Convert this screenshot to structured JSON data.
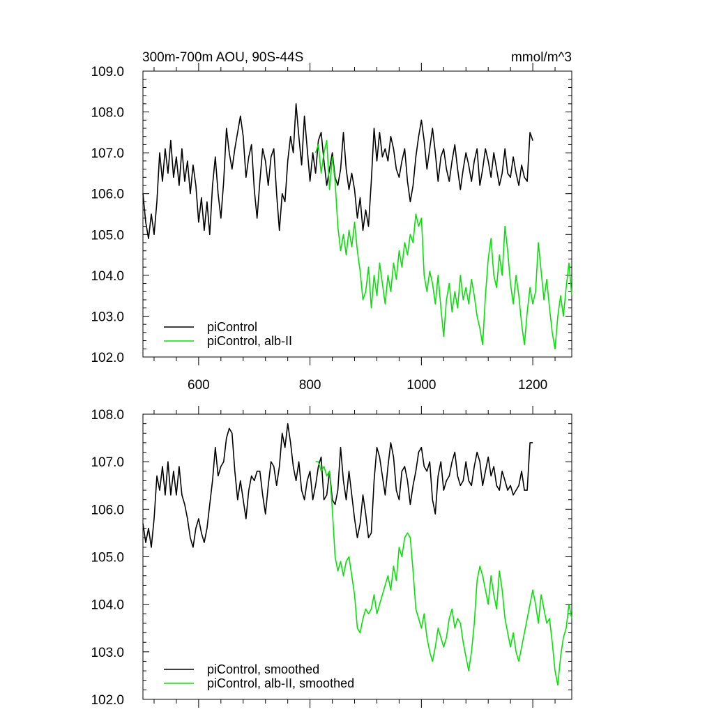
{
  "chart_data": [
    {
      "type": "line",
      "title": "300m-700m AOU, 90S-44S",
      "units": "mmol/m^3",
      "xlim": [
        500,
        1270
      ],
      "ylim": [
        102.0,
        109.0
      ],
      "x_ticks": [
        600,
        800,
        1000,
        1200
      ],
      "x_tick_labels": [
        "600",
        "800",
        "1000",
        "1200"
      ],
      "y_ticks": [
        102,
        103,
        104,
        105,
        106,
        107,
        108,
        109
      ],
      "y_tick_labels": [
        "102.0",
        "103.0",
        "104.0",
        "105.0",
        "106.0",
        "107.0",
        "108.0",
        "109.0"
      ],
      "legend_position": "bottom-left",
      "series": [
        {
          "name": "piControl",
          "color": "#000000",
          "x": [
            500,
            505,
            510,
            515,
            520,
            525,
            530,
            535,
            540,
            545,
            550,
            555,
            560,
            565,
            570,
            575,
            580,
            585,
            590,
            595,
            600,
            605,
            610,
            615,
            620,
            625,
            630,
            635,
            640,
            645,
            650,
            655,
            660,
            665,
            670,
            675,
            680,
            685,
            690,
            695,
            700,
            705,
            710,
            715,
            720,
            725,
            730,
            735,
            740,
            745,
            750,
            755,
            760,
            765,
            770,
            775,
            780,
            785,
            790,
            795,
            800,
            805,
            810,
            815,
            820,
            825,
            830,
            835,
            840,
            845,
            850,
            855,
            860,
            865,
            870,
            875,
            880,
            885,
            890,
            895,
            900,
            905,
            910,
            915,
            920,
            925,
            930,
            935,
            940,
            945,
            950,
            955,
            960,
            965,
            970,
            975,
            980,
            985,
            990,
            995,
            1000,
            1005,
            1010,
            1015,
            1020,
            1025,
            1030,
            1035,
            1040,
            1045,
            1050,
            1055,
            1060,
            1065,
            1070,
            1075,
            1080,
            1085,
            1090,
            1095,
            1100,
            1105,
            1110,
            1115,
            1120,
            1125,
            1130,
            1135,
            1140,
            1145,
            1150,
            1155,
            1160,
            1165,
            1170,
            1175,
            1180,
            1185,
            1190,
            1195,
            1200
          ],
          "values": [
            106.0,
            105.3,
            104.9,
            105.5,
            105.0,
            105.8,
            107.0,
            106.3,
            107.1,
            106.5,
            107.3,
            106.4,
            106.9,
            106.2,
            107.1,
            106.3,
            106.8,
            106.0,
            106.7,
            106.2,
            105.3,
            105.9,
            105.1,
            105.8,
            105.0,
            106.2,
            106.9,
            106.0,
            105.4,
            106.3,
            107.6,
            107.0,
            106.6,
            107.1,
            107.5,
            107.9,
            107.4,
            106.4,
            106.9,
            107.2,
            106.1,
            105.4,
            106.3,
            107.1,
            106.8,
            106.2,
            106.9,
            107.1,
            106.0,
            105.1,
            106.0,
            105.8,
            106.8,
            107.4,
            107.0,
            108.2,
            107.4,
            106.7,
            107.9,
            107.1,
            106.3,
            107.0,
            106.5,
            107.3,
            107.5,
            106.8,
            106.2,
            106.6,
            107.0,
            106.4,
            106.2,
            106.6,
            107.5,
            106.6,
            106.1,
            106.5,
            106.1,
            105.4,
            105.9,
            105.1,
            105.6,
            105.2,
            106.3,
            107.6,
            106.8,
            107.5,
            106.9,
            107.1,
            106.8,
            107.4,
            107.1,
            106.6,
            106.4,
            106.8,
            107.1,
            106.3,
            105.8,
            106.2,
            106.9,
            107.4,
            107.8,
            107.3,
            106.6,
            107.1,
            107.6,
            107.0,
            106.3,
            106.9,
            107.1,
            106.6,
            106.3,
            106.8,
            107.2,
            106.6,
            106.1,
            106.6,
            107.0,
            106.7,
            106.3,
            106.8,
            107.1,
            106.2,
            106.6,
            107.1,
            106.8,
            106.4,
            107.0,
            106.6,
            106.2,
            106.5,
            107.1,
            106.5,
            106.4,
            106.9,
            106.5,
            106.2,
            106.7,
            106.4,
            106.3,
            107.5,
            107.3
          ]
        },
        {
          "name": "piControl, alb-II",
          "color": "#00e600",
          "x": [
            810,
            815,
            820,
            825,
            830,
            835,
            840,
            845,
            850,
            855,
            860,
            865,
            870,
            875,
            880,
            885,
            890,
            895,
            900,
            905,
            910,
            915,
            920,
            925,
            930,
            935,
            940,
            945,
            950,
            955,
            960,
            965,
            970,
            975,
            980,
            985,
            990,
            995,
            1000,
            1005,
            1010,
            1015,
            1020,
            1025,
            1030,
            1035,
            1040,
            1045,
            1050,
            1055,
            1060,
            1065,
            1070,
            1075,
            1080,
            1085,
            1090,
            1095,
            1100,
            1105,
            1110,
            1115,
            1120,
            1125,
            1130,
            1135,
            1140,
            1145,
            1150,
            1155,
            1160,
            1165,
            1170,
            1175,
            1180,
            1185,
            1190,
            1195,
            1200,
            1205,
            1210,
            1215,
            1220,
            1225,
            1230,
            1235,
            1240,
            1245,
            1250,
            1255,
            1260,
            1265,
            1270
          ],
          "values": [
            107.0,
            107.2,
            106.5,
            107.0,
            107.3,
            106.1,
            106.9,
            106.3,
            105.2,
            104.6,
            105.0,
            104.5,
            105.1,
            104.7,
            105.3,
            104.6,
            104.1,
            103.4,
            103.6,
            104.2,
            103.2,
            104.0,
            103.5,
            104.3,
            103.8,
            103.3,
            104.0,
            103.6,
            104.3,
            103.9,
            104.6,
            104.2,
            104.8,
            104.5,
            105.0,
            104.8,
            105.5,
            105.2,
            105.4,
            104.0,
            103.6,
            104.1,
            103.8,
            103.3,
            104.0,
            103.2,
            102.5,
            103.4,
            103.8,
            103.1,
            103.6,
            103.2,
            104.0,
            103.4,
            103.7,
            103.3,
            103.9,
            103.5,
            103.0,
            102.7,
            102.3,
            103.5,
            104.4,
            104.9,
            104.0,
            103.7,
            104.5,
            104.0,
            105.2,
            104.6,
            103.8,
            103.3,
            104.0,
            103.5,
            102.8,
            102.3,
            103.1,
            103.7,
            103.3,
            103.6,
            104.8,
            104.1,
            103.4,
            103.9,
            103.2,
            102.6,
            102.2,
            103.0,
            103.5,
            103.0,
            103.7,
            104.3,
            103.5
          ]
        }
      ]
    },
    {
      "type": "line",
      "xlim": [
        500,
        1270
      ],
      "ylim": [
        102.0,
        108.0
      ],
      "x_ticks": [
        600,
        800,
        1000,
        1200
      ],
      "y_ticks": [
        102,
        103,
        104,
        105,
        106,
        107,
        108
      ],
      "y_tick_labels": [
        "102.0",
        "103.0",
        "104.0",
        "105.0",
        "106.0",
        "107.0",
        "108.0"
      ],
      "legend_position": "bottom-left",
      "series": [
        {
          "name": "piControl, smoothed",
          "color": "#000000",
          "x": [
            500,
            505,
            510,
            515,
            520,
            525,
            530,
            535,
            540,
            545,
            550,
            555,
            560,
            565,
            570,
            575,
            580,
            585,
            590,
            595,
            600,
            605,
            610,
            615,
            620,
            625,
            630,
            635,
            640,
            645,
            650,
            655,
            660,
            665,
            670,
            675,
            680,
            685,
            690,
            695,
            700,
            705,
            710,
            715,
            720,
            725,
            730,
            735,
            740,
            745,
            750,
            755,
            760,
            765,
            770,
            775,
            780,
            785,
            790,
            795,
            800,
            805,
            810,
            815,
            820,
            825,
            830,
            835,
            840,
            845,
            850,
            855,
            860,
            865,
            870,
            875,
            880,
            885,
            890,
            895,
            900,
            905,
            910,
            915,
            920,
            925,
            930,
            935,
            940,
            945,
            950,
            955,
            960,
            965,
            970,
            975,
            980,
            985,
            990,
            995,
            1000,
            1005,
            1010,
            1015,
            1020,
            1025,
            1030,
            1035,
            1040,
            1045,
            1050,
            1055,
            1060,
            1065,
            1070,
            1075,
            1080,
            1085,
            1090,
            1095,
            1100,
            1105,
            1110,
            1115,
            1120,
            1125,
            1130,
            1135,
            1140,
            1145,
            1150,
            1155,
            1160,
            1165,
            1170,
            1175,
            1180,
            1185,
            1190,
            1195,
            1200
          ],
          "values": [
            105.7,
            105.3,
            105.6,
            105.2,
            105.8,
            106.7,
            106.4,
            106.9,
            106.3,
            107.0,
            106.3,
            106.8,
            106.3,
            106.9,
            106.3,
            106.1,
            105.8,
            105.4,
            105.2,
            105.6,
            105.8,
            105.5,
            105.3,
            105.6,
            106.1,
            106.6,
            107.3,
            106.7,
            106.9,
            107.0,
            107.5,
            107.7,
            107.6,
            106.8,
            106.2,
            106.6,
            106.2,
            105.8,
            106.4,
            106.7,
            106.6,
            106.8,
            106.8,
            106.3,
            105.9,
            106.5,
            107.0,
            106.9,
            106.5,
            106.9,
            107.6,
            107.3,
            107.8,
            107.4,
            106.9,
            106.6,
            107.0,
            106.4,
            106.2,
            106.6,
            106.8,
            106.2,
            106.5,
            106.9,
            107.1,
            106.2,
            106.3,
            106.8,
            106.2,
            106.1,
            106.4,
            107.3,
            106.6,
            106.2,
            106.8,
            106.3,
            105.8,
            105.4,
            105.7,
            106.3,
            105.9,
            105.4,
            105.5,
            106.6,
            107.3,
            107.1,
            106.7,
            106.3,
            106.9,
            107.4,
            107.1,
            106.4,
            106.2,
            106.8,
            106.9,
            106.6,
            106.1,
            106.5,
            106.8,
            107.2,
            107.3,
            106.9,
            106.8,
            107.0,
            106.2,
            105.9,
            106.7,
            107.0,
            106.4,
            106.6,
            106.7,
            107.0,
            107.2,
            106.7,
            106.5,
            106.6,
            107.0,
            106.6,
            106.5,
            106.9,
            107.2,
            107.0,
            106.5,
            106.8,
            107.1,
            106.7,
            106.9,
            106.5,
            106.4,
            106.8,
            106.6,
            106.4,
            106.5,
            106.3,
            106.4,
            106.5,
            106.8,
            106.4,
            106.4,
            107.4,
            107.4
          ]
        },
        {
          "name": "piControl, alb-II, smoothed",
          "color": "#00e600",
          "x": [
            810,
            815,
            820,
            825,
            830,
            835,
            840,
            845,
            850,
            855,
            860,
            865,
            870,
            875,
            880,
            885,
            890,
            895,
            900,
            905,
            910,
            915,
            920,
            925,
            930,
            935,
            940,
            945,
            950,
            955,
            960,
            965,
            970,
            975,
            980,
            985,
            990,
            995,
            1000,
            1005,
            1010,
            1015,
            1020,
            1025,
            1030,
            1035,
            1040,
            1045,
            1050,
            1055,
            1060,
            1065,
            1070,
            1075,
            1080,
            1085,
            1090,
            1095,
            1100,
            1105,
            1110,
            1115,
            1120,
            1125,
            1130,
            1135,
            1140,
            1145,
            1150,
            1155,
            1160,
            1165,
            1170,
            1175,
            1180,
            1185,
            1190,
            1195,
            1200,
            1205,
            1210,
            1215,
            1220,
            1225,
            1230,
            1235,
            1240,
            1245,
            1250,
            1255,
            1260,
            1265,
            1270
          ],
          "values": [
            107.0,
            107.0,
            106.8,
            106.9,
            106.7,
            106.8,
            106.0,
            105.0,
            104.7,
            104.9,
            104.6,
            104.9,
            105.0,
            104.6,
            104.2,
            103.5,
            103.4,
            103.7,
            103.9,
            103.8,
            103.9,
            104.2,
            103.8,
            104.0,
            104.2,
            104.4,
            104.6,
            104.3,
            104.8,
            104.5,
            105.2,
            105.0,
            105.4,
            105.5,
            105.4,
            104.7,
            103.9,
            103.7,
            103.5,
            103.8,
            103.3,
            103.0,
            102.8,
            103.1,
            103.5,
            103.3,
            103.1,
            103.3,
            103.7,
            103.9,
            103.5,
            103.7,
            103.6,
            103.2,
            102.9,
            102.6,
            103.0,
            103.6,
            104.5,
            104.8,
            104.6,
            104.3,
            104.0,
            104.6,
            104.2,
            103.9,
            104.7,
            104.3,
            103.7,
            103.4,
            103.1,
            103.4,
            103.0,
            102.8,
            103.1,
            103.4,
            103.7,
            104.0,
            104.3,
            104.0,
            103.6,
            104.2,
            103.9,
            103.6,
            103.7,
            103.2,
            102.6,
            102.3,
            102.9,
            103.3,
            103.5,
            104.0,
            103.7
          ]
        }
      ]
    }
  ]
}
